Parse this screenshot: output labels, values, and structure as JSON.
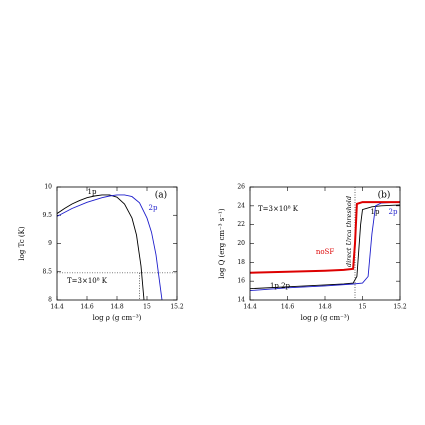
{
  "chart_data": [
    {
      "type": "line",
      "panel_label": "(a)",
      "annotation": "T=3×10⁸ K",
      "xlabel": "log ρ (g cm⁻³)",
      "ylabel": "log Tc (K)",
      "xlim": [
        14.4,
        15.2
      ],
      "xticks": [
        14.4,
        14.6,
        14.8,
        15,
        15.2
      ],
      "ylim": [
        8,
        10
      ],
      "yticks": [
        8,
        8.5,
        9,
        9.5,
        10
      ],
      "hline": 8.48,
      "vline": 14.95,
      "series": [
        {
          "name": "1p",
          "color": "#000000",
          "x": [
            14.4,
            14.45,
            14.5,
            14.55,
            14.6,
            14.65,
            14.7,
            14.75,
            14.8,
            14.85,
            14.9,
            14.93,
            14.96,
            14.98
          ],
          "values": [
            9.53,
            9.62,
            9.7,
            9.76,
            9.81,
            9.84,
            9.86,
            9.86,
            9.82,
            9.7,
            9.45,
            9.15,
            8.6,
            8.0
          ]
        },
        {
          "name": "2p",
          "color": "#1f1fcc",
          "x": [
            14.4,
            14.5,
            14.6,
            14.7,
            14.75,
            14.8,
            14.85,
            14.9,
            14.95,
            15.0,
            15.03,
            15.06,
            15.08,
            15.1
          ],
          "values": [
            9.48,
            9.62,
            9.73,
            9.81,
            9.84,
            9.86,
            9.86,
            9.83,
            9.72,
            9.45,
            9.2,
            8.8,
            8.4,
            8.0
          ]
        }
      ]
    },
    {
      "type": "line",
      "panel_label": "(b)",
      "annotation": "T=3×10⁸ K",
      "threshold_label": "direct Urca threshold",
      "bottom_label": "1p 2p",
      "xlabel": "log ρ (g cm⁻³)",
      "ylabel": "log Q (erg cm⁻³ s⁻¹)",
      "xlim": [
        14.4,
        15.2
      ],
      "xticks": [
        14.4,
        14.6,
        14.8,
        15,
        15.2
      ],
      "ylim": [
        14,
        26
      ],
      "yticks": [
        14,
        16,
        18,
        20,
        22,
        24,
        26
      ],
      "vline": 14.96,
      "series": [
        {
          "name": "1p",
          "color": "#000000",
          "x": [
            14.4,
            14.6,
            14.8,
            14.9,
            14.95,
            14.97,
            14.99,
            15.0,
            15.05,
            15.1,
            15.2
          ],
          "values": [
            15.2,
            15.4,
            15.6,
            15.7,
            15.8,
            16.5,
            22,
            23.6,
            23.9,
            24.0,
            24.1
          ]
        },
        {
          "name": "2p",
          "color": "#1f1fcc",
          "x": [
            14.4,
            14.6,
            14.8,
            14.95,
            15.0,
            15.03,
            15.05,
            15.07,
            15.1,
            15.2
          ],
          "values": [
            15.0,
            15.3,
            15.5,
            15.7,
            15.8,
            16.5,
            21,
            24.0,
            24.3,
            24.4
          ]
        },
        {
          "name": "noSF",
          "color": "#dd0000",
          "width": 2,
          "x": [
            14.4,
            14.6,
            14.8,
            14.9,
            14.95,
            14.96,
            14.97,
            15.0,
            15.2
          ],
          "values": [
            16.9,
            17.0,
            17.1,
            17.2,
            17.3,
            20,
            24.2,
            24.4,
            24.4
          ]
        }
      ]
    }
  ]
}
